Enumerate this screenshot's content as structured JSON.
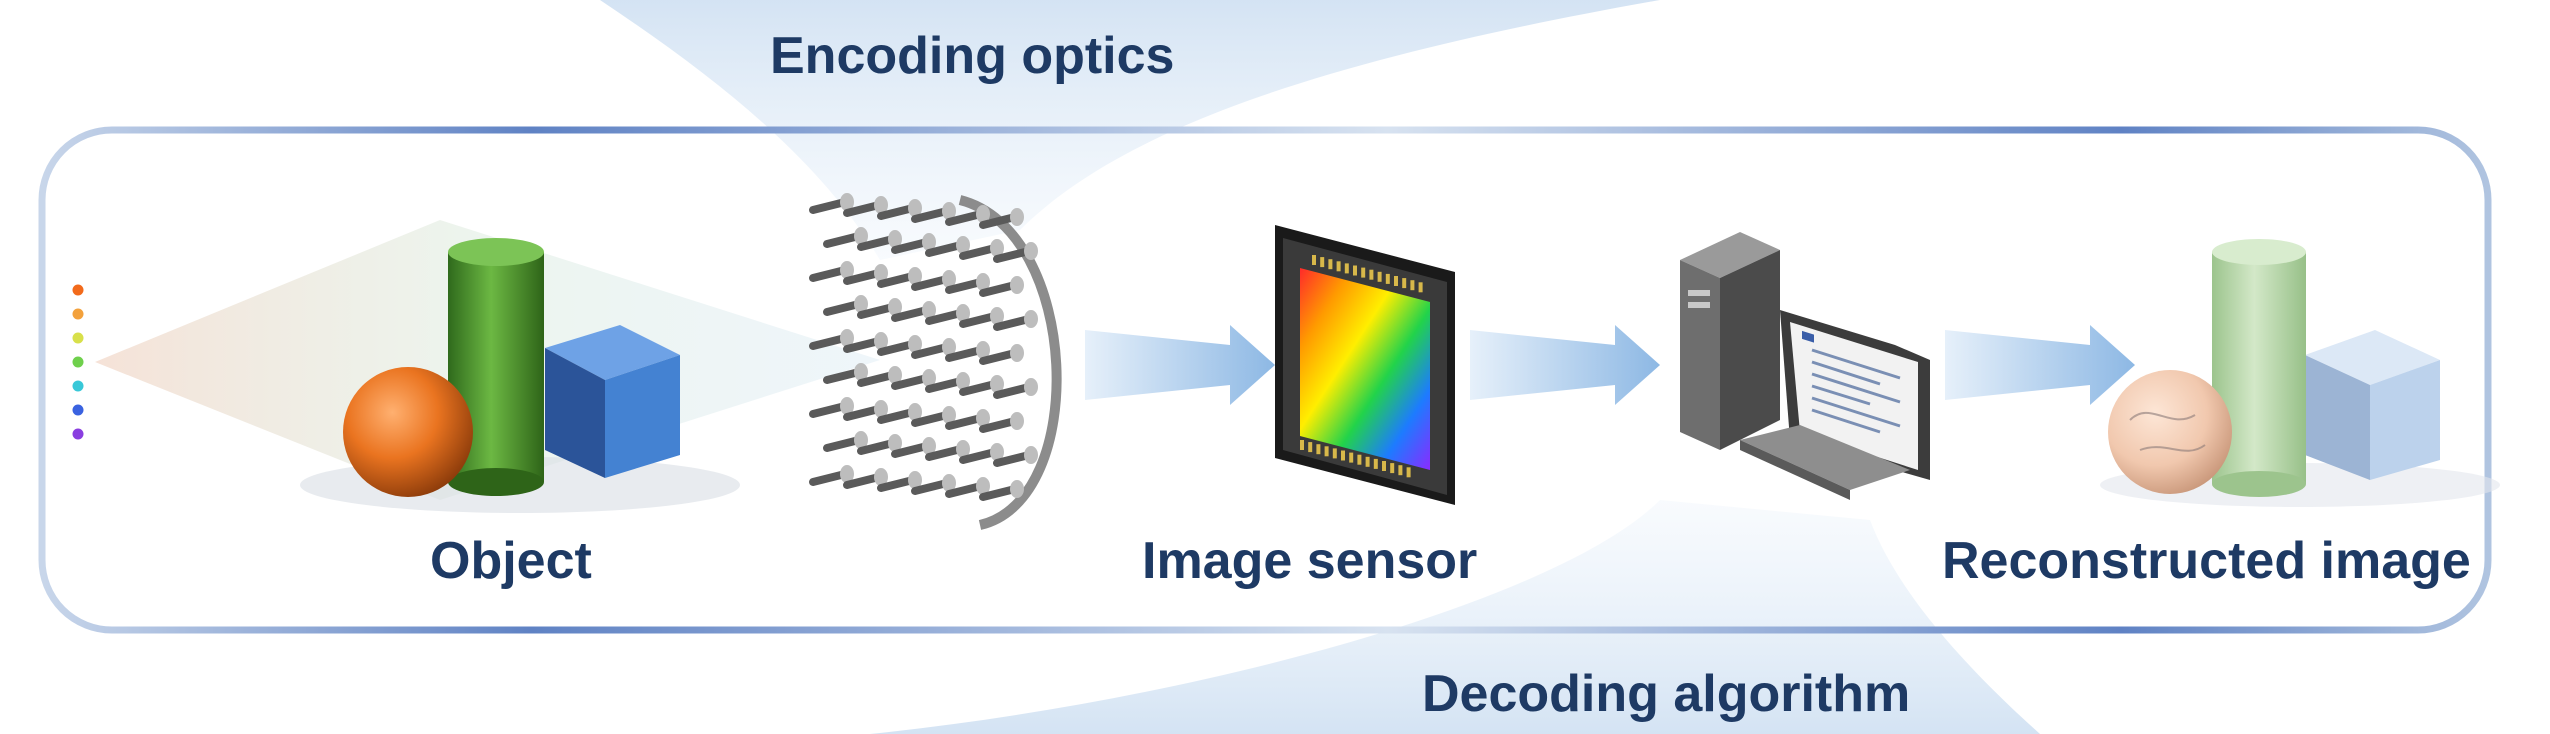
{
  "labels": {
    "encoding": "Encoding optics",
    "object": "Object",
    "sensor": "Image sensor",
    "reconstructed": "Reconstructed image",
    "decoding": "Decoding algorithm"
  },
  "colors": {
    "label_text": "#1e3a64",
    "frame_stroke": "#8aa4c8",
    "arrow_fill": "#9ec2e6",
    "sphere": "#e8741e",
    "cylinder": "#4a8f2e",
    "cube": "#3f7ac8"
  },
  "icons": [
    "point-source-dots",
    "object-shapes",
    "metasurface-lens",
    "image-sensor-chip",
    "computer-icon",
    "reconstructed-shapes",
    "flow-arrow"
  ]
}
